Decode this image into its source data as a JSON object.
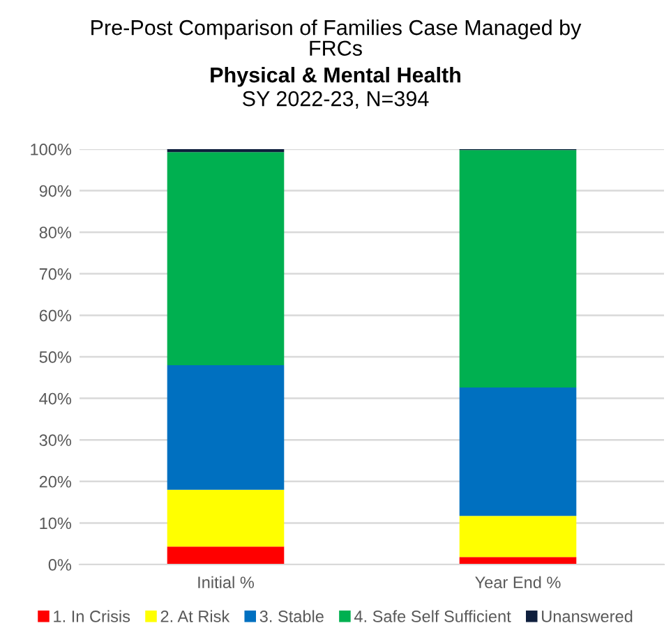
{
  "chart_data": {
    "type": "bar",
    "title": "Pre-Post Comparison of Families Case Managed by\nFRCs",
    "subtitle": "Physical & Mental Health",
    "annotations": [
      "SY 2022-23, N=394"
    ],
    "categories": [
      "Initial %",
      "Year End %"
    ],
    "stacked": true,
    "series": [
      {
        "name": "1. In Crisis",
        "color": "#ff0000",
        "values": [
          4.3,
          1.8
        ]
      },
      {
        "name": "2. At Risk",
        "color": "#ffff00",
        "values": [
          13.7,
          9.9
        ]
      },
      {
        "name": "3. Stable",
        "color": "#0070c0",
        "values": [
          30.0,
          30.9
        ]
      },
      {
        "name": "4. Safe Self Sufficient",
        "color": "#00b050",
        "values": [
          51.3,
          57.2
        ]
      },
      {
        "name": "Unanswered",
        "color": "#0f1f3d",
        "values": [
          0.7,
          0.2
        ]
      }
    ],
    "ylim": [
      0,
      100
    ],
    "yticks": [
      {
        "value": 0,
        "label": "0%"
      },
      {
        "value": 10,
        "label": "10%"
      },
      {
        "value": 20,
        "label": "20%"
      },
      {
        "value": 30,
        "label": "30%"
      },
      {
        "value": 40,
        "label": "40%"
      },
      {
        "value": 50,
        "label": "50%"
      },
      {
        "value": 60,
        "label": "60%"
      },
      {
        "value": 70,
        "label": "70%"
      },
      {
        "value": 80,
        "label": "80%"
      },
      {
        "value": 90,
        "label": "90%"
      },
      {
        "value": 100,
        "label": "100%"
      }
    ],
    "grid": "y",
    "legend": "bottom"
  }
}
